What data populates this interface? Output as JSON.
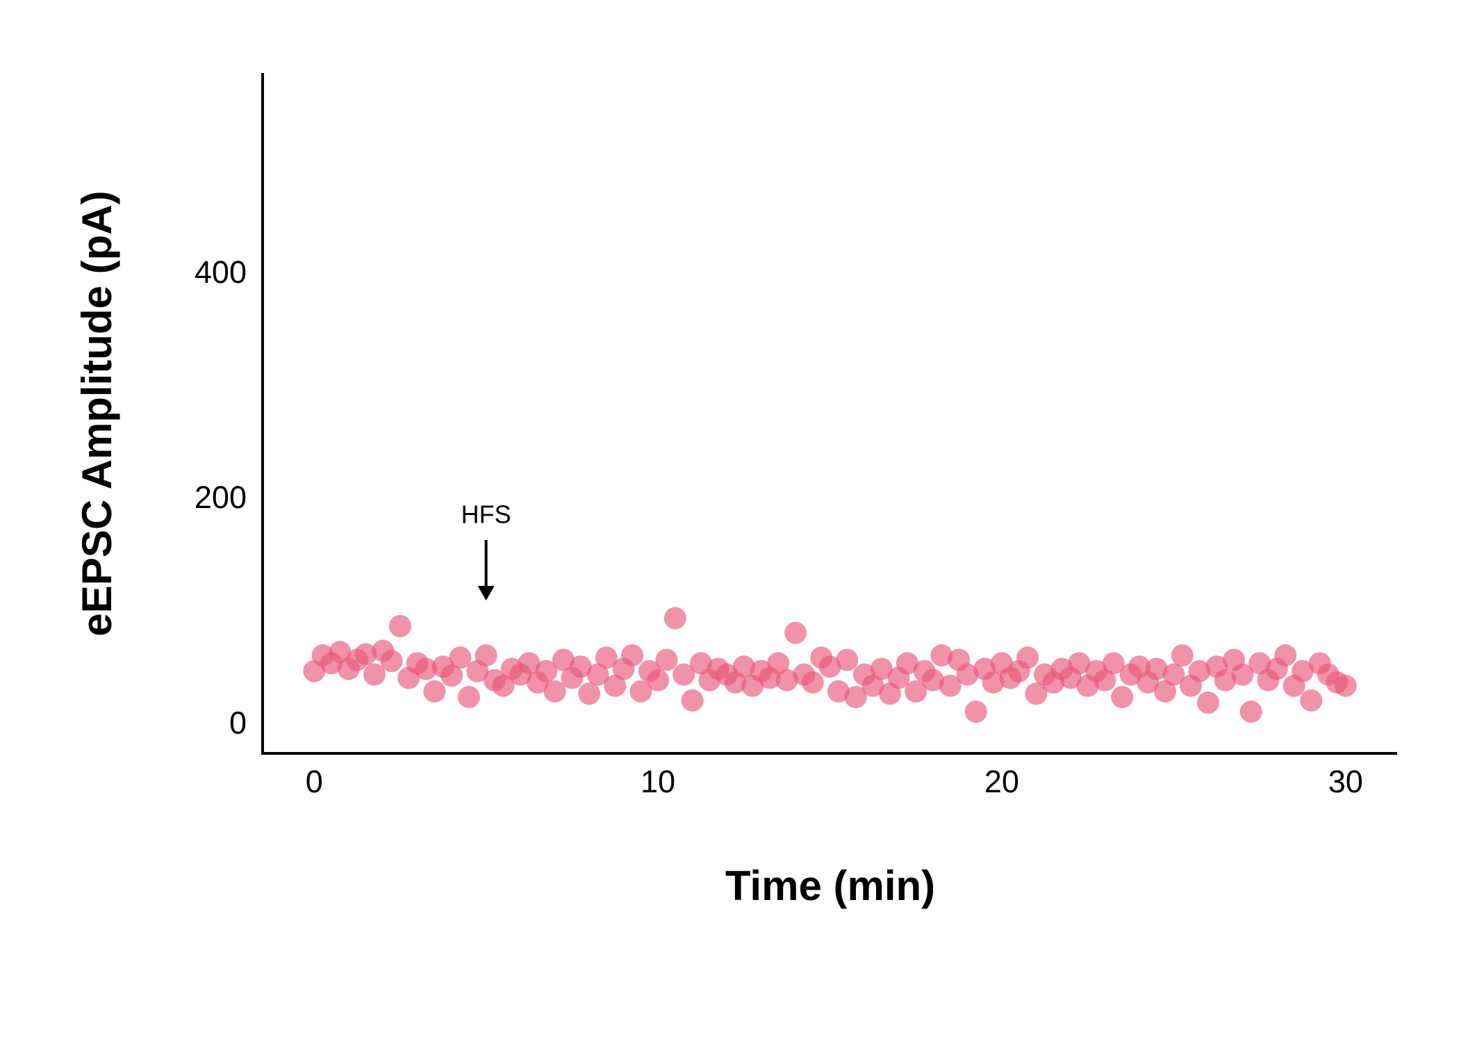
{
  "chart_data": {
    "type": "scatter",
    "x_label": "Time (min)",
    "y_label": "eEPSC Amplitude (pA)",
    "annotations": [
      {
        "text": "HFS",
        "x": 5
      }
    ],
    "xlim": [
      -1.5,
      31.5
    ],
    "ylim": [
      -25,
      579
    ],
    "xticks": [
      0,
      10,
      20,
      30
    ],
    "yticks": [
      0,
      200,
      400
    ],
    "grid": false,
    "color": "#e8587a",
    "x": [
      0,
      0.25,
      0.5,
      0.75,
      1,
      1.25,
      1.5,
      1.75,
      2,
      2.25,
      2.5,
      2.75,
      3,
      3.25,
      3.5,
      3.75,
      4,
      4.25,
      4.5,
      4.75,
      5,
      5.25,
      5.5,
      5.75,
      6,
      6.25,
      6.5,
      6.75,
      7,
      7.25,
      7.5,
      7.75,
      8,
      8.25,
      8.5,
      8.75,
      9,
      9.25,
      9.5,
      9.75,
      10,
      10.25,
      10.5,
      10.75,
      11,
      11.25,
      11.5,
      11.75,
      12,
      12.25,
      12.5,
      12.75,
      13,
      13.25,
      13.5,
      13.75,
      14,
      14.25,
      14.5,
      14.75,
      15,
      15.25,
      15.5,
      15.75,
      16,
      16.25,
      16.5,
      16.75,
      17,
      17.25,
      17.5,
      17.75,
      18,
      18.25,
      18.5,
      18.75,
      19,
      19.25,
      19.5,
      19.75,
      20,
      20.25,
      20.5,
      20.75,
      21,
      21.25,
      21.5,
      21.75,
      22,
      22.25,
      22.5,
      22.75,
      23,
      23.25,
      23.5,
      23.75,
      24,
      24.25,
      24.5,
      24.75,
      25,
      25.25,
      25.5,
      25.75,
      26,
      26.25,
      26.5,
      26.75,
      27,
      27.25,
      27.5,
      27.75,
      28,
      28.25,
      28.5,
      28.75,
      29,
      29.25,
      29.5,
      29.75,
      30
    ],
    "values": [
      48,
      62,
      55,
      65,
      50,
      58,
      63,
      45,
      66,
      57,
      88,
      42,
      55,
      50,
      30,
      52,
      44,
      60,
      25,
      48,
      62,
      40,
      35,
      50,
      45,
      55,
      38,
      48,
      30,
      58,
      42,
      52,
      28,
      45,
      60,
      35,
      50,
      62,
      30,
      48,
      40,
      58,
      95,
      45,
      22,
      55,
      40,
      50,
      45,
      38,
      52,
      35,
      48,
      42,
      55,
      40,
      82,
      45,
      38,
      60,
      52,
      30,
      58,
      25,
      45,
      35,
      50,
      28,
      42,
      55,
      30,
      48,
      40,
      62,
      35,
      58,
      45,
      12,
      50,
      38,
      55,
      42,
      48,
      60,
      28,
      45,
      38,
      50,
      42,
      55,
      35,
      48,
      40,
      55,
      25,
      45,
      52,
      38,
      50,
      30,
      45,
      62,
      35,
      48,
      20,
      52,
      40,
      58,
      45,
      12,
      55,
      40,
      50,
      62,
      35,
      48,
      22,
      55,
      45,
      38,
      35
    ]
  }
}
